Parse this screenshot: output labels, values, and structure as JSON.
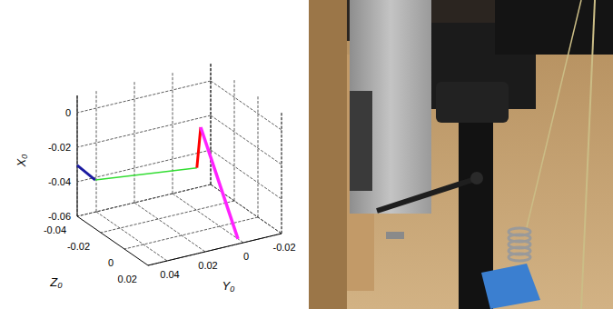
{
  "chart_data": {
    "type": "line3d",
    "x_label": "X₀",
    "y_label": "Y₀",
    "z_label": "Z₀",
    "xlim": [
      -0.06,
      0.01
    ],
    "ylim": [
      -0.02,
      0.05
    ],
    "zlim": [
      -0.04,
      0.02
    ],
    "xticks": [
      -0.06,
      -0.04,
      -0.02,
      0
    ],
    "yticks": [
      -0.02,
      0,
      0.02,
      0.04
    ],
    "zticks": [
      -0.04,
      -0.02,
      0,
      0.02
    ],
    "grid": true,
    "series": [
      {
        "color": "#1a1aa0",
        "x": [
          -0.0305,
          -0.0415
        ],
        "y": [
          0.05,
          0.0405
        ],
        "z": [
          -0.04,
          -0.04
        ]
      },
      {
        "color": "#33dd33",
        "x": [
          -0.0415,
          -0.023
        ],
        "y": [
          0.0405,
          0.012
        ],
        "z": [
          -0.04,
          0
        ]
      },
      {
        "color": "#ff0000",
        "x": [
          -0.023,
          0
        ],
        "y": [
          0.012,
          0.01
        ],
        "z": [
          0,
          0
        ]
      },
      {
        "color": "#ff22ff",
        "x": [
          0,
          -0.078
        ],
        "y": [
          0.01,
          -0.003
        ],
        "z": [
          0,
          0.02
        ]
      }
    ]
  }
}
